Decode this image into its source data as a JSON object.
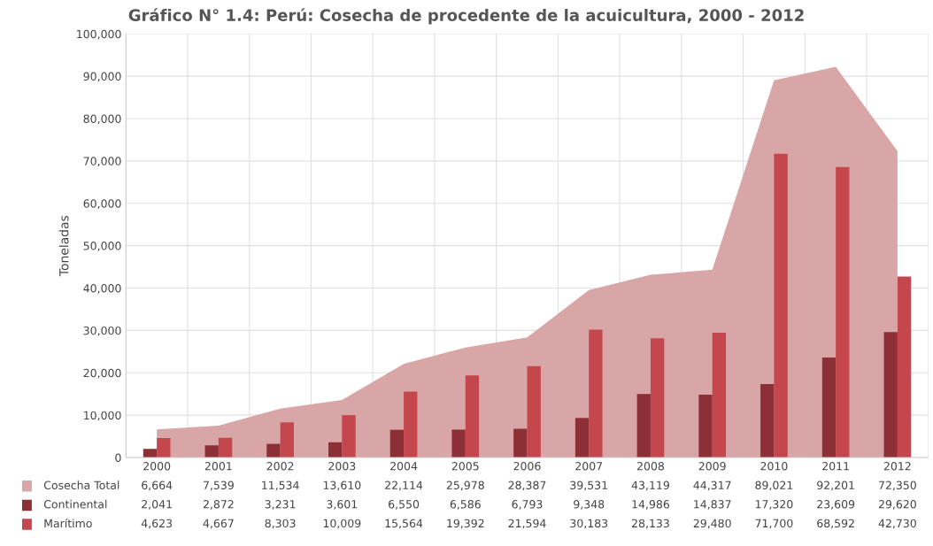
{
  "chart_data": {
    "type": "bar",
    "title": "Gráfico N° 1.4: Perú: Cosecha de procedente de la acuicultura, 2000 - 2012",
    "ylabel": "Toneladas",
    "categories": [
      "2000",
      "2001",
      "2002",
      "2003",
      "2004",
      "2005",
      "2006",
      "2007",
      "2008",
      "2009",
      "2010",
      "2011",
      "2012"
    ],
    "series": [
      {
        "name": "Cosecha Total",
        "type": "area",
        "color": "#d9a6a8",
        "values": [
          6664,
          7539,
          11534,
          13610,
          22114,
          25978,
          28387,
          39531,
          43119,
          44317,
          89021,
          92201,
          72350
        ],
        "value_labels": [
          "6,664",
          "7,539",
          "11,534",
          "13,610",
          "22,114",
          "25,978",
          "28,387",
          "39,531",
          "43,119",
          "44,317",
          "89,021",
          "92,201",
          "72,350"
        ]
      },
      {
        "name": "Continental",
        "type": "bar",
        "color": "#8c2f37",
        "values": [
          2041,
          2872,
          3231,
          3601,
          6550,
          6586,
          6793,
          9348,
          14986,
          14837,
          17320,
          23609,
          29620
        ],
        "value_labels": [
          "2,041",
          "2,872",
          "3,231",
          "3,601",
          "6,550",
          "6,586",
          "6,793",
          "9,348",
          "14,986",
          "14,837",
          "17,320",
          "23,609",
          "29,620"
        ]
      },
      {
        "name": "Marítimo",
        "type": "bar",
        "color": "#c4474d",
        "values": [
          4623,
          4667,
          8303,
          10009,
          15564,
          19392,
          21594,
          30183,
          28133,
          29480,
          71700,
          68592,
          42730
        ],
        "value_labels": [
          "4,623",
          "4,667",
          "8,303",
          "10,009",
          "15,564",
          "19,392",
          "21,594",
          "30,183",
          "28,133",
          "29,480",
          "71,700",
          "68,592",
          "42,730"
        ]
      }
    ],
    "ylim": [
      0,
      100000
    ],
    "yticks": [
      {
        "value": 0,
        "label": "0"
      },
      {
        "value": 10000,
        "label": "10,000"
      },
      {
        "value": 20000,
        "label": "20,000"
      },
      {
        "value": 30000,
        "label": "30,000"
      },
      {
        "value": 40000,
        "label": "40,000"
      },
      {
        "value": 50000,
        "label": "50,000"
      },
      {
        "value": 60000,
        "label": "60,000"
      },
      {
        "value": 70000,
        "label": "70,000"
      },
      {
        "value": 80000,
        "label": "80,000"
      },
      {
        "value": 90000,
        "label": "90,000"
      },
      {
        "value": 100000,
        "label": "100,000"
      }
    ],
    "grid": true,
    "legend": "bottom"
  }
}
